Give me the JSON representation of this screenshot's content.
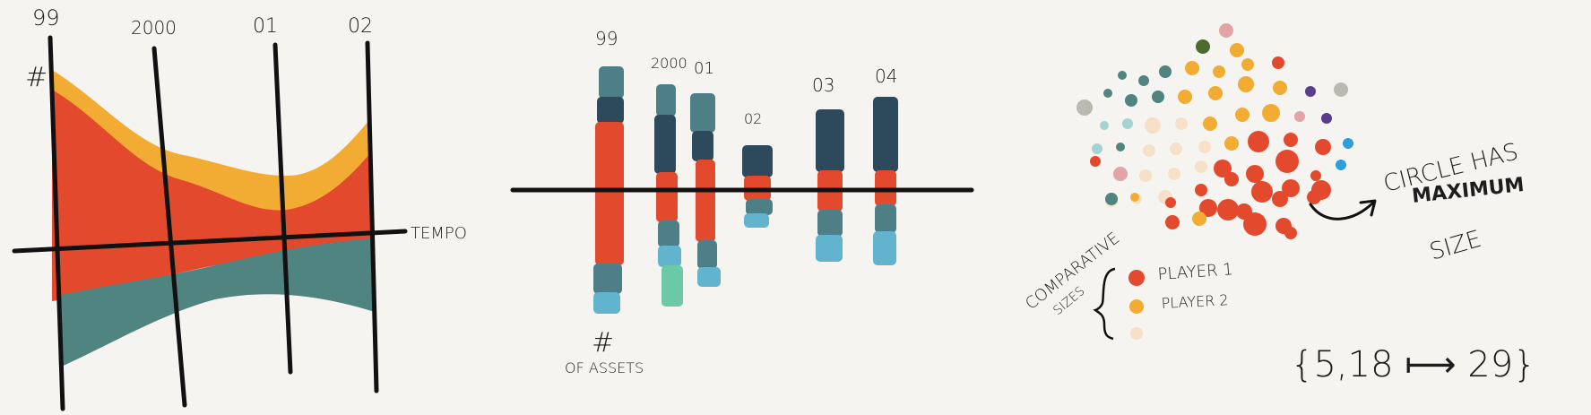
{
  "panel_stream": {
    "year_labels": [
      "99",
      "2000",
      "01",
      "02"
    ],
    "hash_label": "#",
    "axis_label": "TEMPO",
    "colors": {
      "yellow": "#f2ac33",
      "red": "#e2492d",
      "teal": "#4f8480"
    }
  },
  "panel_stacks": {
    "year_labels": [
      "99",
      "2000",
      "01",
      "02",
      "03",
      "04"
    ],
    "hash_label": "#",
    "of_assets_label": "OF ASSETS",
    "colors": {
      "dark": "#2d4a5c",
      "slate": "#4e7f86",
      "red": "#e2492d",
      "lightblue": "#62b3cd",
      "mint": "#6cc9a8"
    }
  },
  "panel_bubbles": {
    "comparative_label": "COMPARATIVE",
    "sizes_label": "SIZES",
    "player1_label": "PLAYER 1",
    "player2_label": "PLAYER 2",
    "circle_note_line1": "CIRCLE HAS",
    "circle_note_line2": "MAXIMUM",
    "circle_note_line3": "SIZE",
    "range_label": "{5,18 ⟼ 29}",
    "colors": {
      "red": "#e2492d",
      "yellow": "#f2ac33",
      "cream": "#f6e1c8",
      "teal": "#4f8480",
      "green": "#4c6b2e",
      "blue": "#2d9fd9",
      "purple": "#5a3e8c",
      "pink": "#e3a4a8",
      "grey": "#b9b9b0",
      "lightteal": "#a3d4d1"
    }
  }
}
